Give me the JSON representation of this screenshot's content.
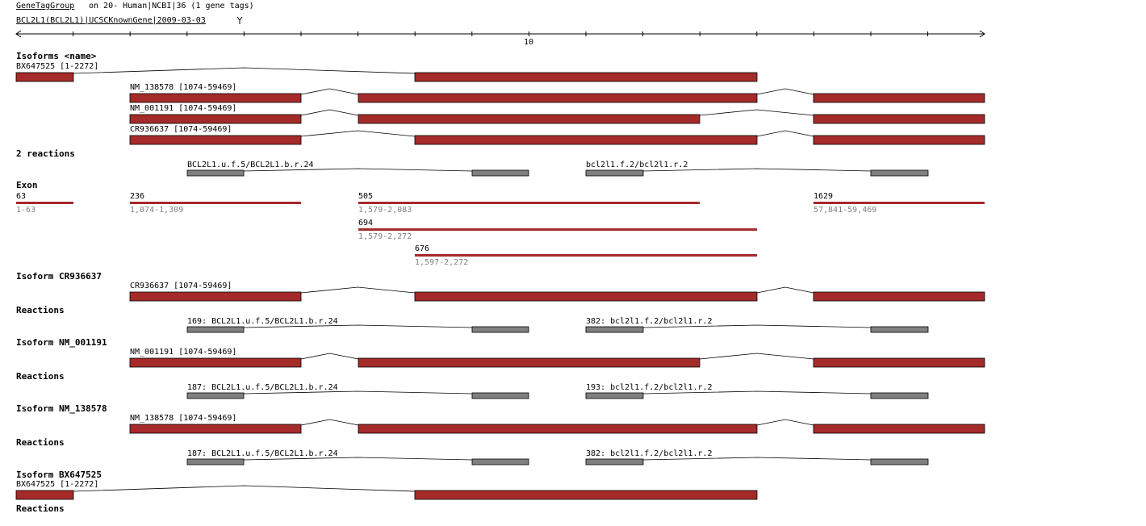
{
  "header": {
    "link": "GeneTagGroup",
    "title": "on 20- Human|NCBI|36 (1 gene tags)",
    "gene": "BCL2L1(BCL2L1)|UCSCKnownGene|2009-03-03"
  },
  "ruler": {
    "label": "10"
  },
  "isoforms": {
    "heading": "Isoforms <name>",
    "items": [
      "BX647525 [1-2272]",
      "NM_138578 [1074-59469]",
      "NM_001191 [1074-59469]",
      "CR936637 [1074-59469]"
    ]
  },
  "reactions": {
    "heading": "2 reactions",
    "items": [
      "BCL2L1.u.f.5/BCL2L1.b.r.24",
      "bcl2l1.f.2/bcl2l1.r.2"
    ]
  },
  "exons": {
    "heading": "Exon",
    "items": [
      {
        "length": "63",
        "range": "1-63"
      },
      {
        "length": "236",
        "range": "1,074-1,309"
      },
      {
        "length": "505",
        "range": "1,579-2,083"
      },
      {
        "length": "1629",
        "range": "57,841-59,469"
      },
      {
        "length": "694",
        "range": "1,579-2,272"
      },
      {
        "length": "676",
        "range": "1,597-2,272"
      }
    ]
  },
  "details": [
    {
      "heading": "Isoform CR936637",
      "isoform": "CR936637 [1074-59469]",
      "reactions_heading": "Reactions",
      "reactions": [
        "169: BCL2L1.u.f.5/BCL2L1.b.r.24",
        "382: bcl2l1.f.2/bcl2l1.r.2"
      ]
    },
    {
      "heading": "Isoform NM_001191",
      "isoform": "NM_001191 [1074-59469]",
      "reactions_heading": "Reactions",
      "reactions": [
        "187: BCL2L1.u.f.5/BCL2L1.b.r.24",
        "193: bcl2l1.f.2/bcl2l1.r.2"
      ]
    },
    {
      "heading": "Isoform NM_138578",
      "isoform": "NM_138578 [1074-59469]",
      "reactions_heading": "Reactions",
      "reactions": [
        "187: BCL2L1.u.f.5/BCL2L1.b.r.24",
        "382: bcl2l1.f.2/bcl2l1.r.2"
      ]
    },
    {
      "heading": "Isoform BX647525",
      "isoform": "BX647525 [1-2272]",
      "reactions_heading": "Reactions"
    }
  ]
}
